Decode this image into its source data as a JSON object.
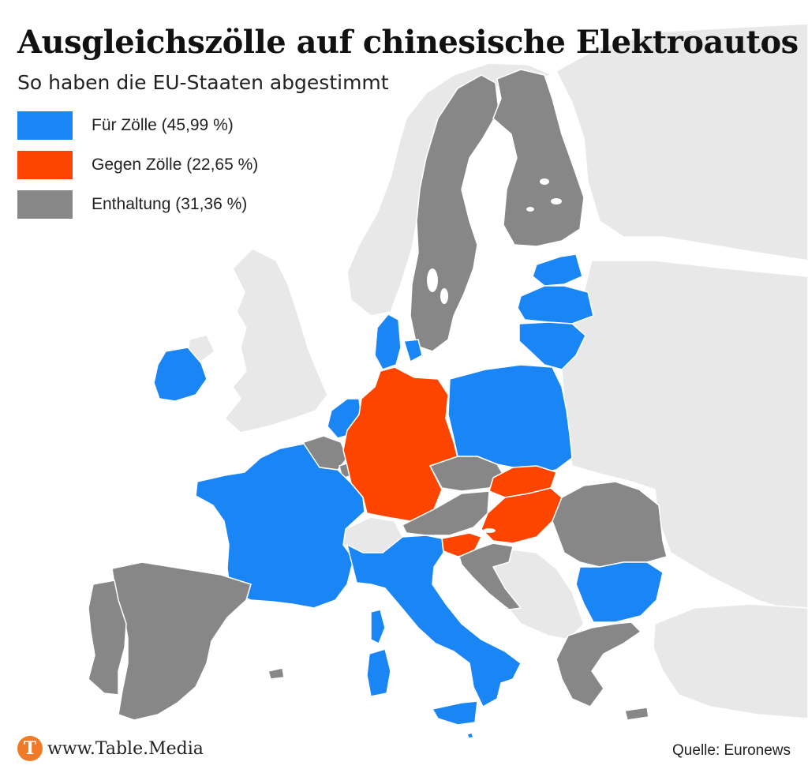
{
  "title": "Ausgleichszölle auf chinesische Elektroautos",
  "subtitle": "So haben die EU-Staaten abgestimmt",
  "colors": {
    "for": "#1a85f5",
    "against": "#fe4500",
    "abstain": "#878787",
    "nonEu": "#e8e8e8",
    "sea": "#ffffff"
  },
  "legend": [
    {
      "key": "for",
      "label": "Für Zölle (45,99 %)",
      "color": "#1a85f5"
    },
    {
      "key": "against",
      "label": "Gegen Zölle (22,65 %)",
      "color": "#fe4500"
    },
    {
      "key": "abstain",
      "label": "Enthaltung (31,36 %)",
      "color": "#878787"
    }
  ],
  "regions": {
    "sweden": "abstain",
    "finland": "abstain",
    "estonia": "for",
    "latvia": "for",
    "lithuania": "for",
    "ireland": "for",
    "denmark": "for",
    "netherlands": "for",
    "belgium": "abstain",
    "luxembourg": "abstain",
    "germany": "against",
    "poland": "for",
    "czechia": "abstain",
    "slovakia": "against",
    "hungary": "against",
    "austria": "abstain",
    "slovenia": "against",
    "croatia": "abstain",
    "france": "for",
    "italy": "for",
    "sardinia": "for",
    "corsica": "for",
    "sicily": "for",
    "spain": "abstain",
    "portugal": "abstain",
    "romania": "abstain",
    "bulgaria": "for",
    "greece": "abstain",
    "malta": "for",
    "cyprus": "abstain"
  },
  "brand": {
    "logo_letter": "T",
    "text": "www.Table.Media"
  },
  "source": "Quelle: Euronews"
}
